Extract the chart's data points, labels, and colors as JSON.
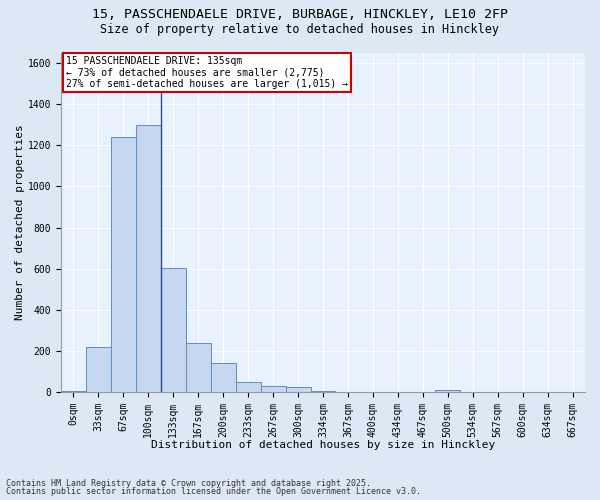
{
  "title1": "15, PASSCHENDAELE DRIVE, BURBAGE, HINCKLEY, LE10 2FP",
  "title2": "Size of property relative to detached houses in Hinckley",
  "xlabel": "Distribution of detached houses by size in Hinckley",
  "ylabel": "Number of detached properties",
  "bar_color": "#c5d8f0",
  "bar_edge_color": "#5b8ec4",
  "background_color": "#dce9f5",
  "plot_bg_color": "#e8f2fc",
  "grid_color": "#ffffff",
  "annotation_box_color": "#cc0000",
  "marker_line_color": "#2a4a8a",
  "categories": [
    "0sqm",
    "33sqm",
    "67sqm",
    "100sqm",
    "133sqm",
    "167sqm",
    "200sqm",
    "233sqm",
    "267sqm",
    "300sqm",
    "334sqm",
    "367sqm",
    "400sqm",
    "434sqm",
    "467sqm",
    "500sqm",
    "534sqm",
    "567sqm",
    "600sqm",
    "634sqm",
    "667sqm"
  ],
  "values": [
    5,
    220,
    1240,
    1300,
    605,
    240,
    140,
    50,
    30,
    25,
    5,
    0,
    0,
    0,
    0,
    10,
    0,
    0,
    0,
    0,
    0
  ],
  "ylim": [
    0,
    1650
  ],
  "yticks": [
    0,
    200,
    400,
    600,
    800,
    1000,
    1200,
    1400,
    1600
  ],
  "marker_bin_index": 3,
  "annotation_line1": "15 PASSCHENDAELE DRIVE: 135sqm",
  "annotation_line2": "← 73% of detached houses are smaller (2,775)",
  "annotation_line3": "27% of semi-detached houses are larger (1,015) →",
  "footnote1": "Contains HM Land Registry data © Crown copyright and database right 2025.",
  "footnote2": "Contains public sector information licensed under the Open Government Licence v3.0.",
  "title1_fontsize": 9.5,
  "title2_fontsize": 8.5,
  "axis_label_fontsize": 8,
  "tick_fontsize": 7,
  "annotation_fontsize": 7,
  "footnote_fontsize": 6
}
